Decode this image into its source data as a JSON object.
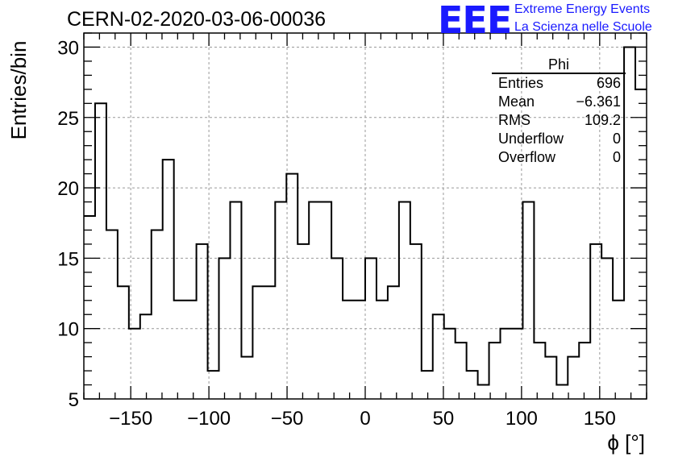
{
  "header": {
    "run_title": "CERN-02-2020-03-06-00036",
    "logo_text": "EEE",
    "logo_line1": "Extreme Energy Events",
    "logo_line2": "La Scienza nelle Scuole",
    "logo_color": "#1a1aff"
  },
  "stats_box": {
    "title": "Phi",
    "rows": [
      {
        "label": "Entries",
        "value": "696"
      },
      {
        "label": "Mean",
        "value": "−6.361"
      },
      {
        "label": "RMS",
        "value": "109.2"
      },
      {
        "label": "Underflow",
        "value": "0"
      },
      {
        "label": "Overflow",
        "value": "0"
      }
    ]
  },
  "chart_data": {
    "type": "bar",
    "style": "step-histogram",
    "xlabel": "ϕ [°]",
    "ylabel": "Entries/bin",
    "xlim": [
      -180,
      180
    ],
    "ylim": [
      5,
      31
    ],
    "bin_width": 7.2,
    "grid": true,
    "x_ticks": [
      -150,
      -100,
      -50,
      0,
      50,
      100,
      150
    ],
    "x_tick_labels": [
      "−150",
      "−100",
      "−50",
      "0",
      "50",
      "100",
      "150"
    ],
    "y_ticks": [
      5,
      10,
      15,
      20,
      25,
      30
    ],
    "y_tick_labels": [
      "5",
      "10",
      "15",
      "20",
      "25",
      "30"
    ],
    "values": [
      18,
      26,
      17,
      13,
      10,
      11,
      17,
      22,
      12,
      12,
      16,
      7,
      15,
      19,
      8,
      13,
      13,
      19,
      21,
      16,
      19,
      19,
      15,
      12,
      12,
      15,
      12,
      13,
      19,
      16,
      7,
      11,
      10,
      9,
      7,
      6,
      9,
      10,
      10,
      19,
      9,
      8,
      6,
      8,
      9,
      16,
      15,
      12,
      30,
      27
    ]
  }
}
